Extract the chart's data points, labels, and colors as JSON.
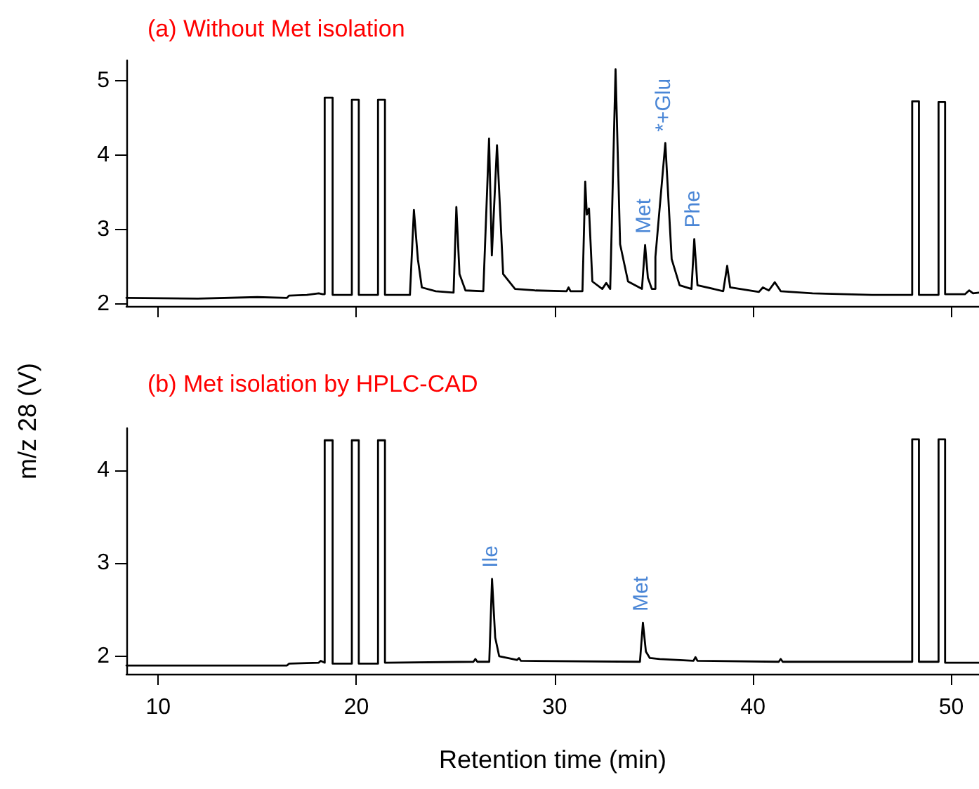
{
  "chart_data": [
    {
      "type": "line",
      "title": "(a) Without Met isolation",
      "ylabel": "m/z 28 (V)",
      "xlim": [
        8.4,
        51.4
      ],
      "xticks": [
        10,
        20,
        30,
        40,
        50
      ],
      "ylim": [
        1.97,
        5.27
      ],
      "yticks": [
        2,
        3,
        4,
        5
      ],
      "tick_labels": "y",
      "grid": false,
      "marker": "none",
      "line_style": "solid",
      "series": [
        {
          "color": "#000000",
          "x": [
            8.4,
            12,
            15,
            16.5,
            16.6,
            17.5,
            18.1,
            18.3,
            18.4,
            18.4,
            18.8,
            18.8,
            19.77,
            19.77,
            20.12,
            20.12,
            21.09,
            21.09,
            21.44,
            21.44,
            22.7,
            22.9,
            23.1,
            23.3,
            24,
            24.9,
            25.04,
            25.2,
            25.5,
            26.4,
            26.69,
            26.83,
            27.09,
            27.4,
            28,
            29,
            30.6,
            30.7,
            30.8,
            31.4,
            31.54,
            31.62,
            31.73,
            31.9,
            32.4,
            32.6,
            32.8,
            33.07,
            33.3,
            33.7,
            34.4,
            34.56,
            34.7,
            34.9,
            35.08,
            35.08,
            35.58,
            35.9,
            36.3,
            36.9,
            37.04,
            37.2,
            38.5,
            38.7,
            38.85,
            40.3,
            40.5,
            40.8,
            41.1,
            41.4,
            43,
            46,
            48.03,
            48.03,
            48.37,
            48.37,
            49.36,
            49.36,
            49.69,
            49.69,
            50.7,
            50.9,
            51.1,
            51.4
          ],
          "values": [
            2.08,
            2.07,
            2.09,
            2.08,
            2.11,
            2.12,
            2.14,
            2.13,
            2.13,
            4.77,
            4.77,
            2.12,
            2.12,
            4.74,
            4.74,
            2.12,
            2.12,
            4.74,
            4.74,
            2.12,
            2.12,
            3.26,
            2.6,
            2.22,
            2.17,
            2.15,
            3.3,
            2.4,
            2.18,
            2.17,
            4.22,
            2.65,
            4.13,
            2.4,
            2.2,
            2.18,
            2.17,
            2.22,
            2.17,
            2.17,
            3.64,
            3.2,
            3.28,
            2.3,
            2.2,
            2.28,
            2.2,
            5.15,
            2.8,
            2.3,
            2.2,
            2.79,
            2.35,
            2.2,
            2.2,
            2.63,
            4.16,
            2.6,
            2.25,
            2.2,
            2.87,
            2.25,
            2.17,
            2.51,
            2.22,
            2.16,
            2.22,
            2.18,
            2.29,
            2.17,
            2.14,
            2.12,
            2.12,
            4.72,
            4.72,
            2.12,
            2.12,
            4.71,
            4.71,
            2.13,
            2.13,
            2.18,
            2.14,
            2.15
          ]
        }
      ],
      "annotations": [
        {
          "text": "Met",
          "x": 34.56,
          "y": 2.79
        },
        {
          "text": "*+Glu",
          "x": 35.58,
          "y": 4.16
        },
        {
          "text": "Phe",
          "x": 37.04,
          "y": 2.87
        }
      ]
    },
    {
      "type": "line",
      "title": "(b) Met isolation by HPLC-CAD",
      "xlabel": "Retention time (min)",
      "xlim": [
        8.4,
        51.4
      ],
      "xticks": [
        10,
        20,
        30,
        40,
        50
      ],
      "ylim": [
        1.81,
        4.45
      ],
      "yticks": [
        2,
        3,
        4
      ],
      "grid": false,
      "marker": "none",
      "line_style": "solid",
      "series": [
        {
          "color": "#000000",
          "x": [
            8.4,
            12,
            16.5,
            16.6,
            18.1,
            18.2,
            18.4,
            18.4,
            18.8,
            18.8,
            19.77,
            19.77,
            20.12,
            20.12,
            21.09,
            21.09,
            21.44,
            21.44,
            25.9,
            26.0,
            26.1,
            26.7,
            26.84,
            27.0,
            27.2,
            28.1,
            28.2,
            28.3,
            34.3,
            34.45,
            34.6,
            34.8,
            35.3,
            37.0,
            37.1,
            37.2,
            41.3,
            41.4,
            41.5,
            48.03,
            48.03,
            48.37,
            48.37,
            49.36,
            49.36,
            49.69,
            49.69,
            51.4
          ],
          "values": [
            1.9,
            1.9,
            1.9,
            1.92,
            1.93,
            1.95,
            1.93,
            4.32,
            4.32,
            1.92,
            1.92,
            4.32,
            4.32,
            1.92,
            1.92,
            4.32,
            4.32,
            1.93,
            1.94,
            1.97,
            1.94,
            1.94,
            2.83,
            2.2,
            2.0,
            1.96,
            1.98,
            1.95,
            1.94,
            2.36,
            2.05,
            1.98,
            1.97,
            1.95,
            1.99,
            1.95,
            1.94,
            1.97,
            1.94,
            1.94,
            4.33,
            4.33,
            1.94,
            1.94,
            4.33,
            4.33,
            1.93,
            1.93
          ]
        }
      ],
      "annotations": [
        {
          "text": "Ile",
          "x": 26.84,
          "y": 2.83
        },
        {
          "text": "Met",
          "x": 34.45,
          "y": 2.36
        }
      ]
    }
  ]
}
